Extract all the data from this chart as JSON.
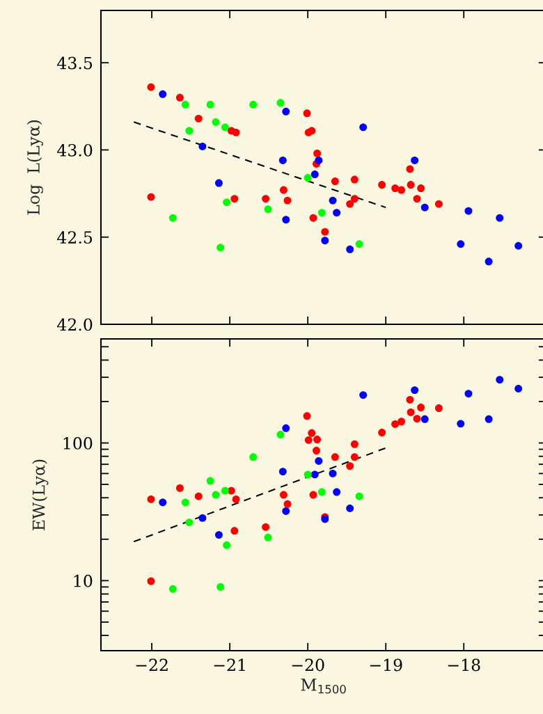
{
  "chart_data": [
    {
      "type": "scatter",
      "ylabel": "Log  L(Lyα)",
      "xlim": [
        -22.652,
        -16.94
      ],
      "ylim": [
        42.0,
        43.8
      ],
      "xticks": [
        -22,
        -21,
        -20,
        -19,
        -18
      ],
      "yticks": [
        {
          "value": 42.0,
          "label": "42.0"
        },
        {
          "value": 42.5,
          "label": "42.5"
        },
        {
          "value": 43.0,
          "label": "43.0"
        },
        {
          "value": 43.5,
          "label": "43.5"
        }
      ],
      "tick_labels": "y",
      "grid": false,
      "legend": false,
      "marker": "circle",
      "series": [
        {
          "color": "#ff0000",
          "x": [
            -22.01,
            -21.64,
            -21.4,
            -20.98,
            -20.92,
            -22.01,
            -20.94,
            -20.54,
            -20.31,
            -20.01,
            -19.99,
            -19.88,
            -19.89,
            -19.93,
            -19.78,
            -19.4,
            -19.05
          ],
          "values": [
            43.36,
            43.3,
            43.18,
            43.11,
            43.1,
            42.73,
            42.72,
            42.72,
            42.77,
            43.21,
            43.1,
            42.98,
            42.92,
            42.61,
            42.53,
            42.72,
            42.8
          ]
        },
        {
          "color": "#0000ff",
          "x": [
            -21.86,
            -21.35,
            -20.28,
            -20.32,
            -21.14,
            -20.28,
            -19.91,
            -19.86,
            -19.29,
            -19.68,
            -19.63,
            -19.78,
            -19.46
          ],
          "values": [
            43.32,
            43.02,
            43.22,
            42.94,
            42.81,
            42.6,
            42.86,
            42.94,
            43.13,
            42.71,
            42.64,
            42.48,
            42.43
          ]
        },
        {
          "color": "#00ff00",
          "x": [
            -21.57,
            -21.25,
            -20.7,
            -20.35,
            -21.52,
            -21.18,
            -21.06,
            -20.0,
            -21.04,
            -20.51,
            -21.73,
            -21.12,
            -19.82,
            -19.34
          ],
          "values": [
            43.26,
            43.26,
            43.26,
            43.27,
            43.11,
            43.16,
            43.13,
            42.84,
            42.7,
            42.66,
            42.61,
            42.44,
            42.64,
            42.46
          ]
        },
        {
          "color": "#ff0000",
          "x": [
            -19.95,
            -20.26,
            -19.65,
            -19.4,
            -19.46,
            -18.88,
            -18.8,
            -18.69,
            -18.68,
            -18.55,
            -18.6,
            -18.32
          ],
          "values": [
            43.11,
            42.71,
            42.82,
            42.83,
            42.69,
            42.78,
            42.77,
            42.89,
            42.8,
            42.78,
            42.72,
            42.69
          ]
        },
        {
          "color": "#0000ff",
          "x": [
            -18.63,
            -18.5,
            -17.94,
            -17.54,
            -18.04,
            -17.3,
            -17.68
          ],
          "values": [
            42.94,
            42.67,
            42.65,
            42.61,
            42.46,
            42.45,
            42.36
          ]
        },
        {
          "type": "line",
          "color": "#000000",
          "line_style": "dashed",
          "marker": "none",
          "x": [
            -22.23,
            -19.0
          ],
          "values": [
            43.16,
            42.67
          ]
        }
      ]
    },
    {
      "type": "scatter",
      "xlabel": "M$_{1500}$",
      "ylabel": "EW(Lyα)",
      "log": "y",
      "xlim": [
        -22.652,
        -16.94
      ],
      "ylim": [
        3.1,
        570
      ],
      "xticks": [
        {
          "value": -22,
          "label": "−22"
        },
        {
          "value": -21,
          "label": "−21"
        },
        {
          "value": -20,
          "label": "−20"
        },
        {
          "value": -19,
          "label": "−19"
        },
        {
          "value": -18,
          "label": "−18"
        }
      ],
      "yticks": [
        {
          "value": 4,
          "label": null
        },
        {
          "value": 5,
          "label": null
        },
        {
          "value": 6,
          "label": null
        },
        {
          "value": 7,
          "label": null
        },
        {
          "value": 8,
          "label": null
        },
        {
          "value": 9,
          "label": null
        },
        {
          "value": 10,
          "label": "10"
        },
        {
          "value": 20,
          "label": null
        },
        {
          "value": 30,
          "label": null
        },
        {
          "value": 40,
          "label": null
        },
        {
          "value": 50,
          "label": null
        },
        {
          "value": 60,
          "label": null
        },
        {
          "value": 70,
          "label": null
        },
        {
          "value": 80,
          "label": null
        },
        {
          "value": 90,
          "label": null
        },
        {
          "value": 100,
          "label": "100"
        },
        {
          "value": 200,
          "label": null
        },
        {
          "value": 300,
          "label": null
        },
        {
          "value": 400,
          "label": null
        },
        {
          "value": 500,
          "label": null
        }
      ],
      "grid": false,
      "legend": false,
      "marker": "circle",
      "series": [
        {
          "color": "#ff0000",
          "x": [
            -22.01,
            -21.64,
            -21.4,
            -20.98,
            -20.92,
            -22.01,
            -20.94,
            -20.54,
            -20.31,
            -20.01,
            -19.99,
            -19.88,
            -19.89,
            -19.93,
            -19.78,
            -19.4,
            -19.05
          ],
          "values": [
            39,
            47,
            41,
            45,
            39,
            9.9,
            23,
            24.5,
            42,
            157,
            105,
            106,
            88,
            42,
            29,
            79,
            119
          ]
        },
        {
          "color": "#0000ff",
          "x": [
            -21.86,
            -21.35,
            -20.28,
            -20.32,
            -21.14,
            -20.28,
            -19.91,
            -19.86,
            -19.29,
            -19.68,
            -19.63,
            -19.78,
            -19.46
          ],
          "values": [
            37,
            28.5,
            128,
            62,
            21.5,
            32,
            59,
            74,
            223,
            60,
            44,
            28,
            33.5
          ]
        },
        {
          "color": "#00ff00",
          "x": [
            -21.57,
            -21.25,
            -20.7,
            -20.35,
            -21.52,
            -21.18,
            -21.06,
            -20.0,
            -21.04,
            -20.51,
            -21.73,
            -21.12,
            -19.82,
            -19.34
          ],
          "values": [
            37,
            53,
            79,
            115,
            26.5,
            42,
            45,
            59,
            18.1,
            20.6,
            8.7,
            9.0,
            44,
            41
          ]
        },
        {
          "color": "#ff0000",
          "x": [
            -19.95,
            -20.26,
            -19.65,
            -19.4,
            -19.46,
            -18.88,
            -18.8,
            -18.69,
            -18.68,
            -18.55,
            -18.6,
            -18.32
          ],
          "values": [
            118,
            36,
            79,
            98,
            68,
            137,
            143,
            206,
            167,
            181,
            150,
            179
          ]
        },
        {
          "color": "#0000ff",
          "x": [
            -18.63,
            -18.5,
            -17.94,
            -17.54,
            -18.04,
            -17.3,
            -17.68
          ],
          "values": [
            242,
            149,
            228,
            288,
            138,
            248,
            149
          ]
        },
        {
          "type": "line",
          "color": "#000000",
          "line_style": "dashed",
          "marker": "none",
          "x": [
            -22.23,
            -19.0
          ],
          "values": [
            19.2,
            92
          ]
        }
      ]
    }
  ]
}
